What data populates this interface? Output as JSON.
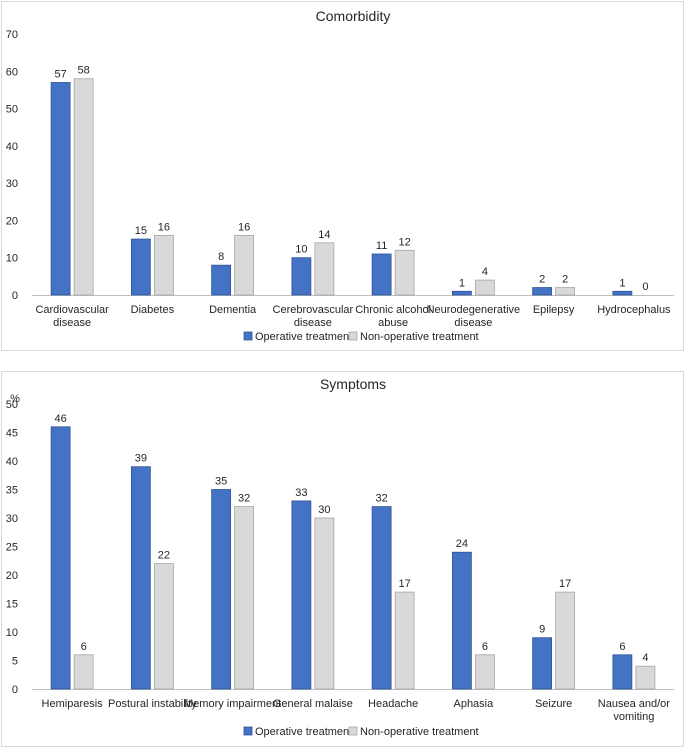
{
  "colors": {
    "operative": "#4472C4",
    "operative_stroke": "#2F5597",
    "nonoperative": "#D9D9D9",
    "nonoperative_stroke": "#A6A6A6"
  },
  "chart_data": [
    {
      "type": "bar",
      "title": "Comorbidity",
      "ylabel": "",
      "ylim": [
        0,
        70
      ],
      "yticks": [
        "0",
        "10",
        "20",
        "30",
        "40",
        "50",
        "60",
        "70"
      ],
      "categories": [
        [
          "Cardiovascular",
          "disease"
        ],
        [
          "Diabetes"
        ],
        [
          "Dementia"
        ],
        [
          "Cerebrovascular",
          "disease"
        ],
        [
          "Chronic alcohol",
          "abuse"
        ],
        [
          "Neurodegenerative",
          "disease"
        ],
        [
          "Epilepsy"
        ],
        [
          "Hydrocephalus"
        ]
      ],
      "series": [
        {
          "name": "Operative treatment",
          "values": [
            57,
            15,
            8,
            10,
            11,
            1,
            2,
            1
          ]
        },
        {
          "name": "Non-operative treatment",
          "values": [
            58,
            16,
            16,
            14,
            12,
            4,
            2,
            0
          ]
        }
      ],
      "legend": "bottom",
      "grid": false
    },
    {
      "type": "bar",
      "title": "Symptoms",
      "ylabel": "%",
      "ylim": [
        0,
        50
      ],
      "yticks": [
        "0",
        "5",
        "10",
        "15",
        "20",
        "25",
        "30",
        "35",
        "40",
        "45",
        "50"
      ],
      "categories": [
        [
          "Hemiparesis"
        ],
        [
          "Postural   instability"
        ],
        [
          "Memory impairment"
        ],
        [
          "General malaise"
        ],
        [
          "Headache"
        ],
        [
          "Aphasia"
        ],
        [
          "Seizure"
        ],
        [
          "Nausea and/or",
          "vomiting"
        ]
      ],
      "series": [
        {
          "name": "Operative treatment",
          "values": [
            46,
            39,
            35,
            33,
            32,
            24,
            9,
            6
          ]
        },
        {
          "name": "Non-operative treatment",
          "values": [
            6,
            22,
            32,
            30,
            17,
            6,
            17,
            4
          ]
        }
      ],
      "legend": "bottom",
      "grid": false
    }
  ]
}
